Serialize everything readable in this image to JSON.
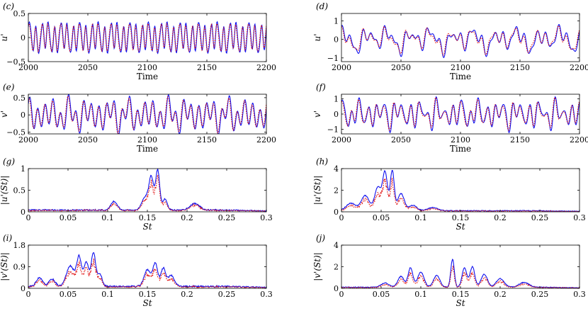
{
  "figure": {
    "colors": {
      "solid": "#1010ee",
      "dotted": "#e01010"
    },
    "series_names": [
      "solid (blue)",
      "dotted (red)"
    ]
  },
  "chart_data": [
    {
      "id": "c",
      "type": "line",
      "panel_label": "(c)",
      "xlabel": "Time",
      "ylabel": "u'",
      "xlim": [
        2000,
        2200
      ],
      "ylim": [
        -0.5,
        0.5
      ],
      "xticks": [
        2000,
        2050,
        2100,
        2150,
        2200
      ],
      "yticks": [
        -0.5,
        0,
        0.5
      ],
      "xtick_labels": [
        "2000",
        "2050",
        "2100",
        "2150",
        "2200"
      ],
      "ytick_labels": [
        "-0.5",
        "0",
        "0.5"
      ],
      "gen": {
        "kind": "osc",
        "amp": 0.27,
        "x0": 2000,
        "x1": 2200,
        "comps": [
          [
            0.19,
            1.0,
            0.3
          ],
          [
            0.07,
            0.35,
            1.4
          ],
          [
            0.31,
            0.2,
            2.1
          ]
        ],
        "seed": 3
      }
    },
    {
      "id": "d",
      "type": "line",
      "panel_label": "(d)",
      "xlabel": "Time",
      "ylabel": "u'",
      "xlim": [
        2000,
        2200
      ],
      "ylim": [
        -1.2,
        1.4
      ],
      "xticks": [
        2000,
        2050,
        2100,
        2150,
        2200
      ],
      "yticks": [
        -1,
        0,
        1
      ],
      "xtick_labels": [
        "2000",
        "2050",
        "2100",
        "2150",
        "2200"
      ],
      "ytick_labels": [
        "-1",
        "0",
        "1"
      ],
      "gen": {
        "kind": "osc",
        "amp": 0.45,
        "x0": 2000,
        "x1": 2200,
        "comps": [
          [
            0.055,
            0.8,
            0.5
          ],
          [
            0.11,
            0.6,
            1.7
          ],
          [
            0.17,
            0.45,
            0.9
          ],
          [
            0.027,
            0.4,
            2.5
          ]
        ],
        "seed": 7
      }
    },
    {
      "id": "e",
      "type": "line",
      "panel_label": "(e)",
      "xlabel": "Time",
      "ylabel": "v'",
      "xlim": [
        2000,
        2200
      ],
      "ylim": [
        -0.55,
        0.6
      ],
      "xticks": [
        2000,
        2050,
        2100,
        2150,
        2200
      ],
      "yticks": [
        -0.5,
        0,
        0.5
      ],
      "xtick_labels": [
        "2000",
        "2050",
        "2100",
        "2150",
        "2200"
      ],
      "ytick_labels": [
        "-0.5",
        "0",
        "0.5"
      ],
      "gen": {
        "kind": "osc",
        "amp": 0.32,
        "x0": 2000,
        "x1": 2200,
        "comps": [
          [
            0.155,
            1.0,
            0.2
          ],
          [
            0.06,
            0.55,
            1.1
          ],
          [
            0.083,
            0.4,
            2.3
          ]
        ],
        "seed": 11
      }
    },
    {
      "id": "f",
      "type": "line",
      "panel_label": "(f)",
      "xlabel": "Time",
      "ylabel": "v'",
      "xlim": [
        2000,
        2200
      ],
      "ylim": [
        -1.3,
        1.3
      ],
      "xticks": [
        2000,
        2050,
        2100,
        2150,
        2200
      ],
      "yticks": [
        -1,
        0,
        1
      ],
      "xtick_labels": [
        "2000",
        "2050",
        "2100",
        "2150",
        "2200"
      ],
      "ytick_labels": [
        "-1",
        "0",
        "1"
      ],
      "gen": {
        "kind": "osc",
        "amp": 0.58,
        "x0": 2000,
        "x1": 2200,
        "comps": [
          [
            0.14,
            1.0,
            0.6
          ],
          [
            0.06,
            0.55,
            1.9
          ],
          [
            0.09,
            0.45,
            0.4
          ],
          [
            0.2,
            0.3,
            2.7
          ]
        ],
        "seed": 19
      }
    },
    {
      "id": "g",
      "type": "line",
      "panel_label": "(g)",
      "xlabel": "St",
      "ylabel": "|u'(St)|",
      "xlim": [
        0,
        0.3
      ],
      "ylim": [
        0,
        1.0
      ],
      "xticks": [
        0,
        0.05,
        0.1,
        0.15,
        0.2,
        0.25,
        0.3
      ],
      "yticks": [
        0,
        0.5,
        1
      ],
      "xtick_labels": [
        "0",
        "0.05",
        "0.1",
        "0.15",
        "0.2",
        "0.25",
        "0.3"
      ],
      "ytick_labels": [
        "0",
        "0.5",
        "1"
      ],
      "gen": {
        "kind": "spec",
        "x0": 0,
        "x1": 0.3,
        "base": 0.04,
        "peaks": [
          [
            0.108,
            0.2,
            0.004
          ],
          [
            0.155,
            0.75,
            0.003
          ],
          [
            0.163,
            0.92,
            0.0025
          ],
          [
            0.147,
            0.3,
            0.004
          ],
          [
            0.172,
            0.25,
            0.003
          ],
          [
            0.21,
            0.15,
            0.006
          ]
        ],
        "ratio": 0.78,
        "seed": 23
      }
    },
    {
      "id": "h",
      "type": "line",
      "panel_label": "(h)",
      "xlabel": "St",
      "ylabel": "|u'(St)|",
      "xlim": [
        0,
        0.3
      ],
      "ylim": [
        0,
        4
      ],
      "xticks": [
        0,
        0.05,
        0.1,
        0.15,
        0.2,
        0.25,
        0.3
      ],
      "yticks": [
        0,
        2,
        4
      ],
      "xtick_labels": [
        "0",
        "0.05",
        "0.1",
        "0.15",
        "0.2",
        "0.25",
        "0.3"
      ],
      "ytick_labels": [
        "0",
        "2",
        "4"
      ],
      "gen": {
        "kind": "spec",
        "x0": 0,
        "x1": 0.3,
        "base": 0.1,
        "peaks": [
          [
            0.055,
            3.5,
            0.003
          ],
          [
            0.064,
            3.7,
            0.0025
          ],
          [
            0.046,
            2.2,
            0.004
          ],
          [
            0.03,
            1.4,
            0.005
          ],
          [
            0.075,
            1.6,
            0.004
          ],
          [
            0.012,
            0.7,
            0.006
          ],
          [
            0.09,
            0.5,
            0.005
          ],
          [
            0.115,
            0.3,
            0.006
          ]
        ],
        "ratio": 0.72,
        "seed": 29
      }
    },
    {
      "id": "i",
      "type": "line",
      "panel_label": "(i)",
      "xlabel": "St",
      "ylabel": "|v'(St)|",
      "xlim": [
        0,
        0.3
      ],
      "ylim": [
        0,
        1.8
      ],
      "xticks": [
        0,
        0.05,
        0.1,
        0.15,
        0.2,
        0.25,
        0.3
      ],
      "yticks": [
        0,
        0.9,
        1.8
      ],
      "xtick_labels": [
        "0",
        "0.05",
        "0.1",
        "0.15",
        "0.2",
        "0.25",
        "0.3"
      ],
      "ytick_labels": [
        "0",
        "0.9",
        "1.8"
      ],
      "gen": {
        "kind": "spec",
        "x0": 0,
        "x1": 0.3,
        "base": 0.08,
        "peaks": [
          [
            0.014,
            0.35,
            0.004
          ],
          [
            0.03,
            0.3,
            0.004
          ],
          [
            0.053,
            0.85,
            0.005
          ],
          [
            0.064,
            1.2,
            0.003
          ],
          [
            0.073,
            1.0,
            0.003
          ],
          [
            0.082,
            1.4,
            0.0028
          ],
          [
            0.09,
            0.5,
            0.003
          ],
          [
            0.15,
            0.7,
            0.004
          ],
          [
            0.16,
            0.95,
            0.003
          ],
          [
            0.17,
            0.75,
            0.003
          ],
          [
            0.18,
            0.45,
            0.004
          ]
        ],
        "ratio": 0.75,
        "seed": 31
      }
    },
    {
      "id": "j",
      "type": "line",
      "panel_label": "(j)",
      "xlabel": "St",
      "ylabel": "|v'(St)|",
      "xlim": [
        0,
        0.3
      ],
      "ylim": [
        0,
        4
      ],
      "xticks": [
        0,
        0.05,
        0.1,
        0.15,
        0.2,
        0.25,
        0.3
      ],
      "yticks": [
        0,
        2,
        4
      ],
      "xtick_labels": [
        "0",
        "0.05",
        "0.1",
        "0.15",
        "0.2",
        "0.25",
        "0.3"
      ],
      "ytick_labels": [
        "0",
        "2",
        "4"
      ],
      "gen": {
        "kind": "spec",
        "x0": 0,
        "x1": 0.3,
        "base": 0.1,
        "peaks": [
          [
            0.075,
            1.0,
            0.004
          ],
          [
            0.087,
            1.8,
            0.003
          ],
          [
            0.1,
            1.4,
            0.004
          ],
          [
            0.12,
            1.1,
            0.004
          ],
          [
            0.14,
            2.6,
            0.0022
          ],
          [
            0.155,
            1.8,
            0.003
          ],
          [
            0.165,
            1.9,
            0.003
          ],
          [
            0.18,
            1.2,
            0.004
          ],
          [
            0.2,
            0.8,
            0.005
          ],
          [
            0.23,
            0.45,
            0.006
          ],
          [
            0.055,
            0.4,
            0.005
          ]
        ],
        "ratio": 0.72,
        "seed": 37
      }
    }
  ]
}
